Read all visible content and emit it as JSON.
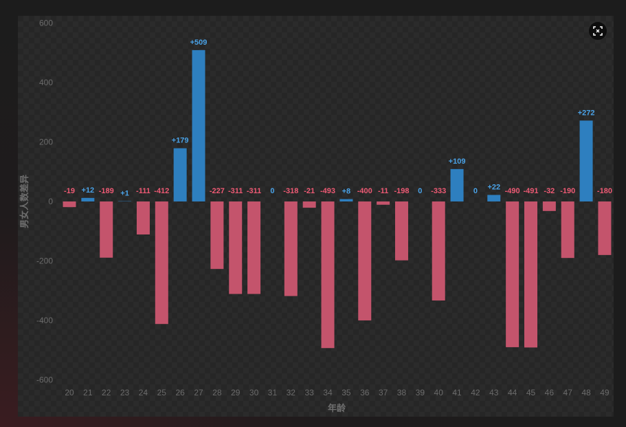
{
  "colors": {
    "positive": "#2e7fbf",
    "negative": "#c4546c",
    "positive_label": "#4aa3e8",
    "negative_label": "#ee5a74",
    "zero_label": "#4aa3e8",
    "tick": "#6b6b6b",
    "axis_title": "#6e6e6e"
  },
  "controls": {
    "expand_icon": "expand-icon"
  },
  "chart_data": {
    "type": "bar",
    "title": "",
    "xlabel": "年龄",
    "ylabel": "男女人数差异",
    "ylim": [
      -600,
      600
    ],
    "yticks": [
      600,
      400,
      200,
      0,
      -200,
      -400,
      -600
    ],
    "grid": false,
    "categories": [
      "20",
      "21",
      "22",
      "23",
      "24",
      "25",
      "26",
      "27",
      "28",
      "29",
      "30",
      "31",
      "32",
      "33",
      "34",
      "35",
      "36",
      "37",
      "38",
      "39",
      "40",
      "41",
      "42",
      "43",
      "44",
      "45",
      "46",
      "47",
      "48",
      "49"
    ],
    "values": [
      -19,
      12,
      -189,
      1,
      -111,
      -412,
      179,
      509,
      -227,
      -311,
      -311,
      0,
      -318,
      -21,
      -493,
      8,
      -400,
      -11,
      -198,
      0,
      -333,
      109,
      0,
      22,
      -490,
      -491,
      -32,
      -190,
      272,
      -180
    ],
    "data_labels": [
      "-19",
      "+12",
      "-189",
      "+1",
      "-111",
      "-412",
      "+179",
      "+509",
      "-227",
      "-311",
      "-311",
      "0",
      "-318",
      "-21",
      "-493",
      "+8",
      "-400",
      "-11",
      "-198",
      "0",
      "-333",
      "+109",
      "0",
      "+22",
      "-490",
      "-491",
      "-32",
      "-190",
      "+272",
      "-180"
    ]
  }
}
